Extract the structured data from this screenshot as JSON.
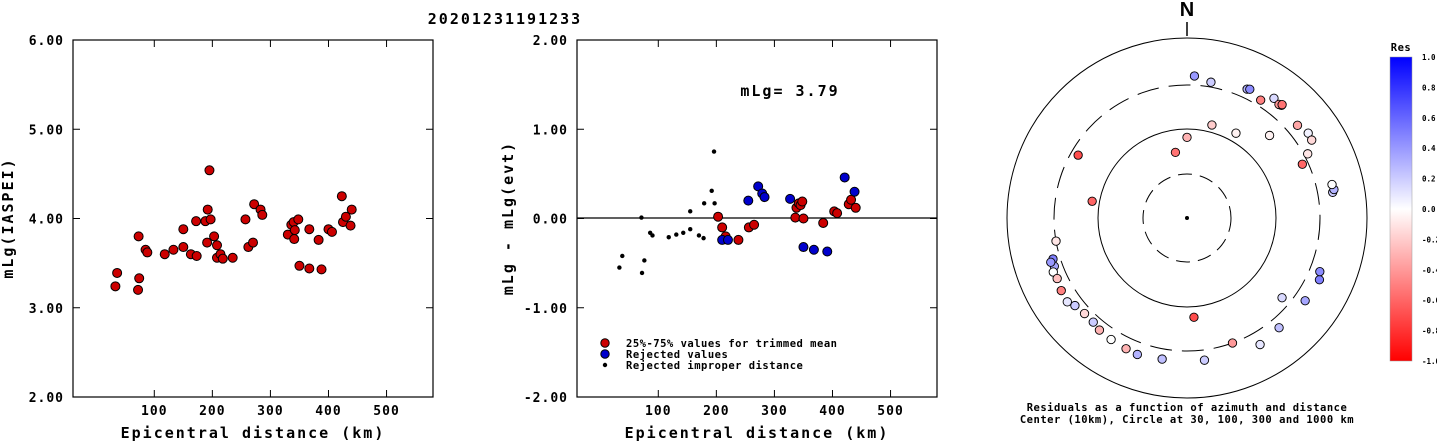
{
  "event_title": "20201231191233",
  "chart_data": [
    {
      "type": "scatter",
      "id": "magnitude",
      "title": "",
      "xlabel": "Epicentral distance (km)",
      "ylabel": "mLg(IASPEI)",
      "xlim": [
        -40,
        580
      ],
      "ylim": [
        2.0,
        6.0
      ],
      "xticks": [
        "100",
        "200",
        "300",
        "400",
        "500"
      ],
      "yticks": [
        "2.00",
        "3.00",
        "4.00",
        "5.00",
        "6.00"
      ],
      "series": [
        {
          "color": "#cc0000",
          "points": [
            [
              33,
              3.24
            ],
            [
              36,
              3.39
            ],
            [
              72,
              3.2
            ],
            [
              74,
              3.33
            ],
            [
              73,
              3.8
            ],
            [
              85,
              3.65
            ],
            [
              88,
              3.62
            ],
            [
              118,
              3.6
            ],
            [
              133,
              3.65
            ],
            [
              150,
              3.88
            ],
            [
              150,
              3.68
            ],
            [
              163,
              3.6
            ],
            [
              172,
              3.97
            ],
            [
              173,
              3.58
            ],
            [
              188,
              3.97
            ],
            [
              191,
              3.73
            ],
            [
              192,
              4.1
            ],
            [
              195,
              4.54
            ],
            [
              197,
              3.99
            ],
            [
              203,
              3.8
            ],
            [
              208,
              3.7
            ],
            [
              208,
              3.56
            ],
            [
              214,
              3.6
            ],
            [
              218,
              3.55
            ],
            [
              235,
              3.56
            ],
            [
              257,
              3.99
            ],
            [
              262,
              3.68
            ],
            [
              270,
              3.73
            ],
            [
              272,
              4.16
            ],
            [
              283,
              4.1
            ],
            [
              286,
              4.04
            ],
            [
              330,
              3.82
            ],
            [
              336,
              3.93
            ],
            [
              340,
              3.96
            ],
            [
              342,
              3.87
            ],
            [
              341,
              3.77
            ],
            [
              348,
              3.99
            ],
            [
              350,
              3.47
            ],
            [
              367,
              3.44
            ],
            [
              367,
              3.88
            ],
            [
              383,
              3.76
            ],
            [
              388,
              3.43
            ],
            [
              400,
              3.88
            ],
            [
              406,
              3.85
            ],
            [
              423,
              4.25
            ],
            [
              425,
              3.96
            ],
            [
              430,
              4.02
            ],
            [
              438,
              3.92
            ],
            [
              440,
              4.1
            ]
          ]
        }
      ]
    },
    {
      "type": "scatter",
      "id": "residual",
      "title": "",
      "xlabel": "Epicentral distance (km)",
      "ylabel": "mLg - mLg(evt)",
      "annotation": "mLg= 3.79",
      "xlim": [
        -40,
        580
      ],
      "ylim": [
        -2.0,
        2.0
      ],
      "xticks": [
        "100",
        "200",
        "300",
        "400",
        "500"
      ],
      "yticks": [
        "-2.00",
        "-1.00",
        "0.00",
        "1.00",
        "2.00"
      ],
      "legend": [
        {
          "label": "25%-75% values for trimmed mean",
          "color": "#cc0000",
          "marker": "circle"
        },
        {
          "label": "Rejected values",
          "color": "#0000cc",
          "marker": "circle"
        },
        {
          "label": "Rejected improper distance",
          "color": "#000000",
          "marker": "dot"
        }
      ],
      "series": [
        {
          "name": "25%-75% values for trimmed mean",
          "color": "#cc0000",
          "points": [
            [
              203,
              0.02
            ],
            [
              210,
              -0.1
            ],
            [
              216,
              -0.2
            ],
            [
              238,
              -0.24
            ],
            [
              256,
              -0.1
            ],
            [
              265,
              -0.07
            ],
            [
              336,
              0.01
            ],
            [
              338,
              0.12
            ],
            [
              342,
              0.17
            ],
            [
              345,
              0.15
            ],
            [
              348,
              0.19
            ],
            [
              350,
              0.0
            ],
            [
              384,
              -0.05
            ],
            [
              403,
              0.08
            ],
            [
              408,
              0.06
            ],
            [
              428,
              0.16
            ],
            [
              432,
              0.21
            ],
            [
              440,
              0.12
            ]
          ]
        },
        {
          "name": "Rejected values",
          "color": "#0000cc",
          "points": [
            [
              210,
              -0.24
            ],
            [
              220,
              -0.24
            ],
            [
              255,
              0.2
            ],
            [
              272,
              0.36
            ],
            [
              279,
              0.28
            ],
            [
              283,
              0.24
            ],
            [
              327,
              0.22
            ],
            [
              350,
              -0.32
            ],
            [
              368,
              -0.35
            ],
            [
              391,
              -0.37
            ],
            [
              421,
              0.46
            ],
            [
              438,
              0.3
            ]
          ]
        },
        {
          "name": "Rejected improper distance",
          "color": "#000000",
          "points": [
            [
              33,
              -0.55
            ],
            [
              38,
              -0.42
            ],
            [
              71,
              0.01
            ],
            [
              72,
              -0.61
            ],
            [
              76,
              -0.47
            ],
            [
              86,
              -0.16
            ],
            [
              90,
              -0.19
            ],
            [
              118,
              -0.21
            ],
            [
              131,
              -0.18
            ],
            [
              143,
              -0.16
            ],
            [
              155,
              -0.12
            ],
            [
              155,
              0.08
            ],
            [
              170,
              -0.19
            ],
            [
              178,
              -0.22
            ],
            [
              179,
              0.17
            ],
            [
              192,
              0.31
            ],
            [
              197,
              0.17
            ],
            [
              196,
              0.75
            ]
          ]
        }
      ]
    },
    {
      "type": "scatter",
      "id": "azimuth",
      "title": "N",
      "caption_line1": "Residuals as a function of azimuth and distance",
      "caption_line2": "Center (10km), Circle at 30, 100, 300 and 1000 km",
      "colorbar_title": "Res",
      "colorbar_ticks": [
        "1.0",
        "0.8",
        "0.6",
        "0.4",
        "0.2",
        "0.0",
        "-0.2",
        "-0.4",
        "-0.6",
        "-0.8",
        "-1.0"
      ],
      "colorbar_range": [
        -1.0,
        1.0
      ],
      "points": [
        {
          "az": 3,
          "dist": 380,
          "res": 0.4
        },
        {
          "az": 10,
          "dist": 340,
          "res": 0.2
        },
        {
          "az": 25,
          "dist": 380,
          "res": 0.3
        },
        {
          "az": 26,
          "dist": 390,
          "res": 0.45
        },
        {
          "az": 32,
          "dist": 350,
          "res": -0.5
        },
        {
          "az": 36,
          "dist": 440,
          "res": 0.15
        },
        {
          "az": 40,
          "dist": 430,
          "res": 0.25
        },
        {
          "az": 39,
          "dist": 420,
          "res": -0.4
        },
        {
          "az": 40,
          "dist": 440,
          "res": -0.55
        },
        {
          "az": 50,
          "dist": 400,
          "res": -0.35
        },
        {
          "az": 55,
          "dist": 440,
          "res": 0.05
        },
        {
          "az": 58,
          "dist": 430,
          "res": -0.15
        },
        {
          "az": 62,
          "dist": 330,
          "res": -0.1
        },
        {
          "az": 65,
          "dist": 260,
          "res": -0.6
        },
        {
          "az": 80,
          "dist": 440,
          "res": 0.2
        },
        {
          "az": 79,
          "dist": 460,
          "res": 0.3
        },
        {
          "az": 77,
          "dist": 450,
          "res": 0.0
        },
        {
          "az": 45,
          "dist": 200,
          "res": -0.05
        },
        {
          "az": 30,
          "dist": 125,
          "res": -0.05
        },
        {
          "az": 15,
          "dist": 120,
          "res": -0.2
        },
        {
          "az": 0,
          "dist": 80,
          "res": -0.3
        },
        {
          "az": -10,
          "dist": 55,
          "res": -0.55
        },
        {
          "az": -60,
          "dist": 250,
          "res": -0.7
        },
        {
          "az": -80,
          "dist": 120,
          "res": -0.6
        },
        {
          "az": -100,
          "dist": 300,
          "res": -0.1
        },
        {
          "az": -107,
          "dist": 360,
          "res": 0.5
        },
        {
          "az": -110,
          "dist": 370,
          "res": 0.35
        },
        {
          "az": -108,
          "dist": 390,
          "res": 0.4
        },
        {
          "az": -112,
          "dist": 400,
          "res": 0.0
        },
        {
          "az": -115,
          "dist": 390,
          "res": -0.25
        },
        {
          "az": -120,
          "dist": 410,
          "res": -0.5
        },
        {
          "az": -125,
          "dist": 420,
          "res": 0.1
        },
        {
          "az": -128,
          "dist": 380,
          "res": 0.2
        },
        {
          "az": -133,
          "dist": 360,
          "res": -0.15
        },
        {
          "az": -138,
          "dist": 360,
          "res": 0.2
        },
        {
          "az": -142,
          "dist": 380,
          "res": -0.3
        },
        {
          "az": -148,
          "dist": 390,
          "res": 0.0
        },
        {
          "az": -155,
          "dist": 400,
          "res": -0.3
        },
        {
          "az": -160,
          "dist": 410,
          "res": 0.3
        },
        {
          "az": -170,
          "dist": 390,
          "res": 0.25
        },
        {
          "az": 173,
          "dist": 390,
          "res": 0.2
        },
        {
          "az": 150,
          "dist": 420,
          "res": 0.1
        },
        {
          "az": 160,
          "dist": 300,
          "res": -0.4
        },
        {
          "az": 140,
          "dist": 390,
          "res": 0.25
        },
        {
          "az": 125,
          "dist": 400,
          "res": 0.35
        },
        {
          "az": 115,
          "dist": 420,
          "res": 0.5
        },
        {
          "az": 112,
          "dist": 390,
          "res": 0.45
        },
        {
          "az": 176,
          "dist": 130,
          "res": -0.7
        },
        {
          "az": 130,
          "dist": 240,
          "res": 0.15
        }
      ]
    }
  ]
}
